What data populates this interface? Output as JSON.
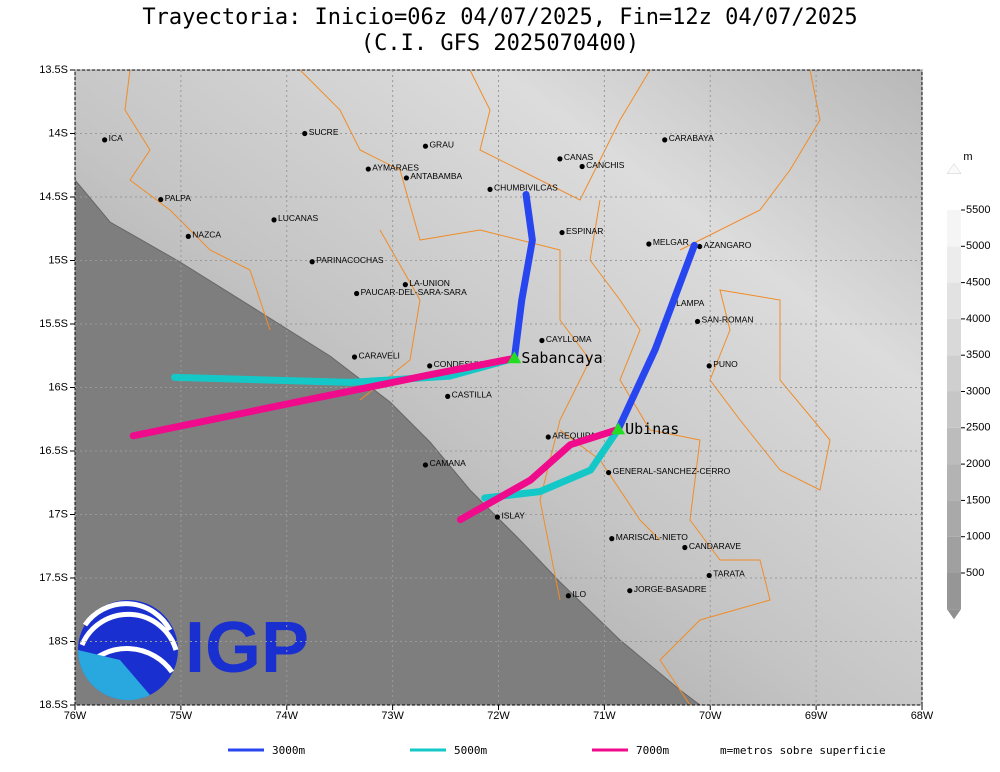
{
  "title": [
    "Trayectoria: Inicio=06z 04/07/2025, Fin=12z 04/07/2025",
    "(C.I. GFS 2025070400)"
  ],
  "map": {
    "xlim": [
      -76,
      -68
    ],
    "ylim": [
      -18.5,
      -13.5
    ],
    "xticks": [
      {
        "value": -76,
        "label": "76W"
      },
      {
        "value": -75,
        "label": "75W"
      },
      {
        "value": -74,
        "label": "74W"
      },
      {
        "value": -73,
        "label": "73W"
      },
      {
        "value": -72,
        "label": "72W"
      },
      {
        "value": -71,
        "label": "71W"
      },
      {
        "value": -70,
        "label": "70W"
      },
      {
        "value": -69,
        "label": "69W"
      },
      {
        "value": -68,
        "label": "68W"
      }
    ],
    "yticks": [
      {
        "value": -13.5,
        "label": "13.5S"
      },
      {
        "value": -14,
        "label": "14S"
      },
      {
        "value": -14.5,
        "label": "14.5S"
      },
      {
        "value": -15,
        "label": "15S"
      },
      {
        "value": -15.5,
        "label": "15.5S"
      },
      {
        "value": -16,
        "label": "16S"
      },
      {
        "value": -16.5,
        "label": "16.5S"
      },
      {
        "value": -17,
        "label": "17S"
      },
      {
        "value": -17.5,
        "label": "17.5S"
      },
      {
        "value": -18,
        "label": "18S"
      },
      {
        "value": -18.5,
        "label": "18.5S"
      }
    ],
    "grid": true
  },
  "places": [
    {
      "name": "ICA",
      "lon": -75.72,
      "lat": -14.05
    },
    {
      "name": "SUCRE",
      "lon": -73.83,
      "lat": -14.0
    },
    {
      "name": "GRAU",
      "lon": -72.69,
      "lat": -14.1
    },
    {
      "name": "AYMARAES",
      "lon": -73.23,
      "lat": -14.28
    },
    {
      "name": "ANTABAMBA",
      "lon": -72.87,
      "lat": -14.35
    },
    {
      "name": "CANAS",
      "lon": -71.42,
      "lat": -14.2
    },
    {
      "name": "CANCHIS",
      "lon": -71.21,
      "lat": -14.26
    },
    {
      "name": "CARABAYA",
      "lon": -70.43,
      "lat": -14.05
    },
    {
      "name": "CHUMBIVILCAS",
      "lon": -72.08,
      "lat": -14.44
    },
    {
      "name": "PALPA",
      "lon": -75.19,
      "lat": -14.52
    },
    {
      "name": "LUCANAS",
      "lon": -74.12,
      "lat": -14.68
    },
    {
      "name": "NAZCA",
      "lon": -74.93,
      "lat": -14.81
    },
    {
      "name": "ESPINAR",
      "lon": -71.4,
      "lat": -14.78
    },
    {
      "name": "MELGAR",
      "lon": -70.58,
      "lat": -14.87
    },
    {
      "name": "AZANGARO",
      "lon": -70.1,
      "lat": -14.89
    },
    {
      "name": "PARINACOCHAS",
      "lon": -73.76,
      "lat": -15.01
    },
    {
      "name": "LA-UNION",
      "lon": -72.88,
      "lat": -15.19
    },
    {
      "name": "PAUCAR-DEL-SARA-SARA",
      "lon": -73.34,
      "lat": -15.26
    },
    {
      "name": "LAMPA",
      "lon": -70.36,
      "lat": -15.35
    },
    {
      "name": "SAN-ROMAN",
      "lon": -70.12,
      "lat": -15.48
    },
    {
      "name": "CAYLLOMA",
      "lon": -71.59,
      "lat": -15.63
    },
    {
      "name": "CARAVELI",
      "lon": -73.36,
      "lat": -15.76
    },
    {
      "name": "CONDESUYOS",
      "lon": -72.65,
      "lat": -15.83
    },
    {
      "name": "PUNO",
      "lon": -70.01,
      "lat": -15.83
    },
    {
      "name": "CASTILLA",
      "lon": -72.48,
      "lat": -16.07
    },
    {
      "name": "AREQUIPA",
      "lon": -71.53,
      "lat": -16.39
    },
    {
      "name": "GENERAL-SANCHEZ-CERRO",
      "lon": -70.96,
      "lat": -16.67
    },
    {
      "name": "CAMANA",
      "lon": -72.69,
      "lat": -16.61
    },
    {
      "name": "ISLAY",
      "lon": -72.01,
      "lat": -17.02
    },
    {
      "name": "MARISCAL-NIETO",
      "lon": -70.93,
      "lat": -17.19
    },
    {
      "name": "CANDARAVE",
      "lon": -70.24,
      "lat": -17.26
    },
    {
      "name": "TARATA",
      "lon": -70.01,
      "lat": -17.48
    },
    {
      "name": "ILO",
      "lon": -71.34,
      "lat": -17.64
    },
    {
      "name": "JORGE-BASADRE",
      "lon": -70.76,
      "lat": -17.6
    }
  ],
  "volcanoes": [
    {
      "name": "Sabancaya",
      "lon": -71.85,
      "lat": -15.77
    },
    {
      "name": "Ubinas",
      "lon": -70.87,
      "lat": -16.33
    }
  ],
  "trajectories": [
    {
      "name": "3000m",
      "color": "#2846f0",
      "tracks": [
        {
          "lon": [
            -71.85,
            -71.78,
            -71.68,
            -71.74
          ],
          "lat": [
            -15.77,
            -15.31,
            -14.84,
            -14.48
          ]
        },
        {
          "lon": [
            -70.87,
            -70.52,
            -70.15
          ],
          "lat": [
            -16.33,
            -15.7,
            -14.88
          ]
        }
      ]
    },
    {
      "name": "5000m",
      "color": "#14c8c8",
      "tracks": [
        {
          "lon": [
            -71.85,
            -72.46,
            -73.4,
            -75.06
          ],
          "lat": [
            -15.77,
            -15.91,
            -15.96,
            -15.92
          ]
        },
        {
          "lon": [
            -70.87,
            -71.13,
            -71.61,
            -72.13
          ],
          "lat": [
            -16.33,
            -16.65,
            -16.82,
            -16.87
          ]
        }
      ]
    },
    {
      "name": "7000m",
      "color": "#f00a8c",
      "tracks": [
        {
          "lon": [
            -71.85,
            -72.65,
            -73.88,
            -75.45
          ],
          "lat": [
            -15.77,
            -15.9,
            -16.11,
            -16.38
          ]
        },
        {
          "lon": [
            -70.87,
            -71.32,
            -71.7,
            -72.36
          ],
          "lat": [
            -16.33,
            -16.45,
            -16.73,
            -17.04
          ]
        }
      ]
    }
  ],
  "legend_note": "m=metros sobre superficie",
  "colorbar": {
    "unit": "m",
    "range": [
      0,
      6000
    ],
    "ticks": [
      500,
      1000,
      1500,
      2000,
      2500,
      3000,
      3500,
      4000,
      4500,
      5000,
      5500
    ]
  },
  "logo": "IGP"
}
